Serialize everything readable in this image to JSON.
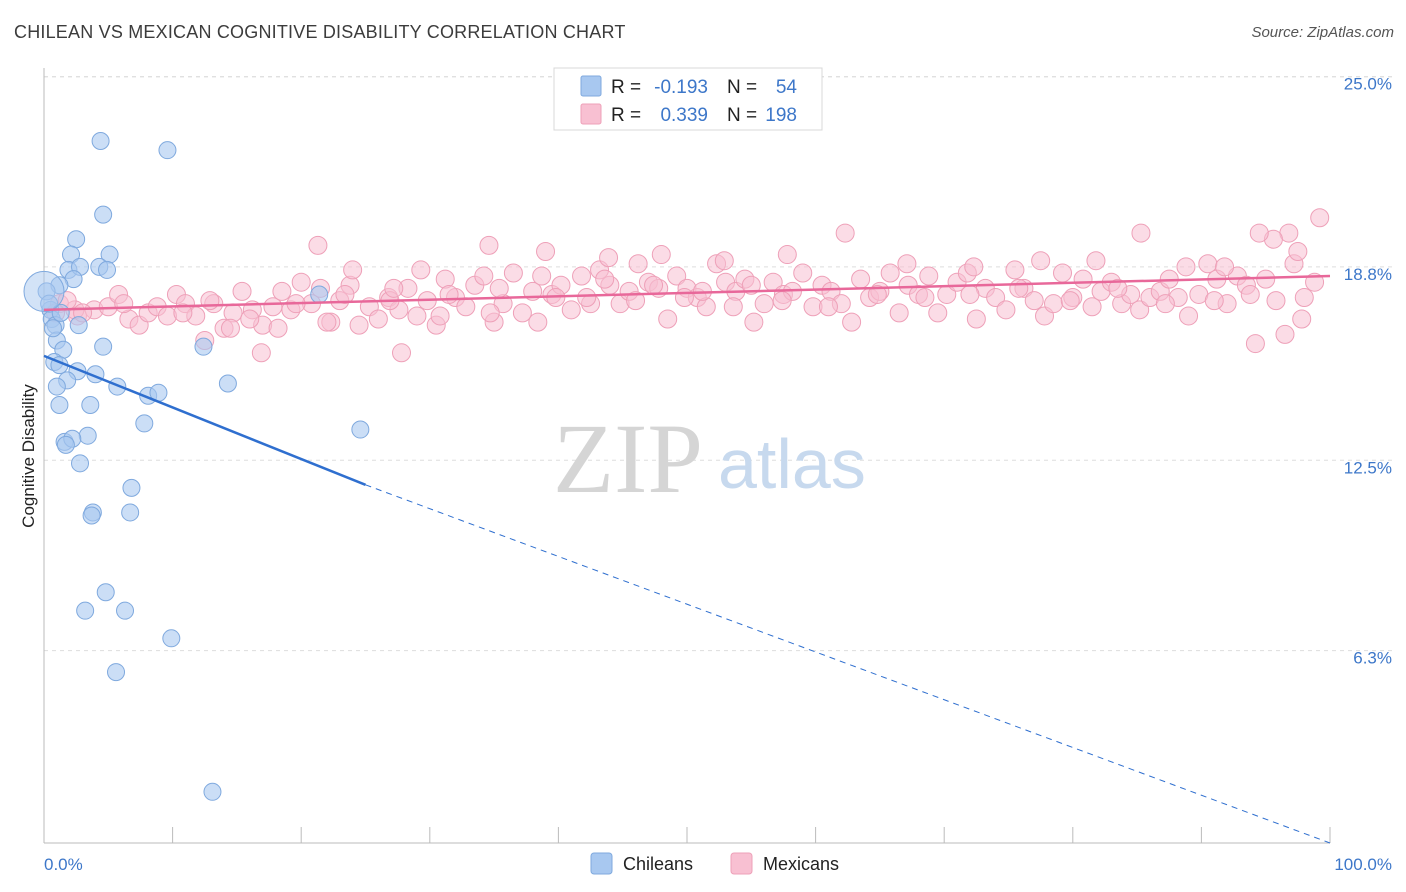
{
  "title": "CHILEAN VS MEXICAN COGNITIVE DISABILITY CORRELATION CHART",
  "source": "Source: ZipAtlas.com",
  "watermark": {
    "zip": "ZIP",
    "atlas": "atlas"
  },
  "legend": {
    "r_label": "R =",
    "n_label": "N =",
    "rows": [
      {
        "r": "-0.193",
        "n": "54",
        "color": "#a8c8f0",
        "stroke": "#7fa9de"
      },
      {
        "r": "0.339",
        "n": "198",
        "color": "#f8c0d2",
        "stroke": "#eea0b8"
      }
    ]
  },
  "chart_data": {
    "type": "scatter",
    "title": "CHILEAN VS MEXICAN COGNITIVE DISABILITY CORRELATION CHART",
    "xlabel": "",
    "ylabel": "Cognitive Disability",
    "xlim": [
      0,
      100
    ],
    "ylim": [
      0,
      25.5
    ],
    "x_tick_labels": [
      "0.0%",
      "100.0%"
    ],
    "y_ticks": [
      {
        "value": 25.0,
        "label": "25.0%"
      },
      {
        "value": 18.8,
        "label": "18.8%"
      },
      {
        "value": 12.5,
        "label": "12.5%"
      },
      {
        "value": 6.3,
        "label": "6.3%"
      }
    ],
    "grid": true,
    "legend_position": "bottom",
    "series": [
      {
        "name": "Chileans",
        "color": "#a8c8f0",
        "stroke": "#7fa9de",
        "line_color": "#2f6fcf",
        "trend": {
          "x0": 0,
          "y0": 15.9,
          "x1": 25,
          "y1": 11.7,
          "dash_to_x": 100,
          "dash_to_y": -0.9
        },
        "points": [
          [
            4.4,
            22.9
          ],
          [
            9.6,
            22.6
          ],
          [
            4.6,
            20.5
          ],
          [
            2.5,
            19.7
          ],
          [
            5.1,
            19.2
          ],
          [
            2.1,
            19.2
          ],
          [
            1.9,
            18.7
          ],
          [
            4.3,
            18.8
          ],
          [
            4.9,
            18.7
          ],
          [
            2.8,
            18.8
          ],
          [
            2.3,
            18.4
          ],
          [
            1.2,
            18.2
          ],
          [
            0.5,
            17.4
          ],
          [
            0.6,
            17.1
          ],
          [
            0.9,
            16.9
          ],
          [
            2.7,
            16.9
          ],
          [
            21.4,
            17.9
          ],
          [
            1.0,
            16.4
          ],
          [
            1.5,
            16.1
          ],
          [
            4.6,
            16.2
          ],
          [
            12.4,
            16.2
          ],
          [
            0.8,
            15.7
          ],
          [
            1.2,
            15.6
          ],
          [
            2.6,
            15.4
          ],
          [
            4.0,
            15.3
          ],
          [
            1.8,
            15.1
          ],
          [
            1.0,
            14.9
          ],
          [
            5.7,
            14.9
          ],
          [
            14.3,
            15.0
          ],
          [
            8.1,
            14.6
          ],
          [
            8.9,
            14.7
          ],
          [
            1.2,
            14.3
          ],
          [
            3.6,
            14.3
          ],
          [
            7.8,
            13.7
          ],
          [
            24.6,
            13.5
          ],
          [
            3.4,
            13.3
          ],
          [
            1.6,
            13.1
          ],
          [
            2.2,
            13.2
          ],
          [
            1.7,
            13.0
          ],
          [
            2.8,
            12.4
          ],
          [
            6.8,
            11.6
          ],
          [
            3.8,
            10.8
          ],
          [
            3.7,
            10.7
          ],
          [
            6.7,
            10.8
          ],
          [
            4.8,
            8.2
          ],
          [
            3.2,
            7.6
          ],
          [
            6.3,
            7.6
          ],
          [
            9.9,
            6.7
          ],
          [
            5.6,
            5.6
          ],
          [
            13.1,
            1.7
          ],
          [
            0.2,
            18.0
          ],
          [
            0.4,
            17.6
          ],
          [
            1.3,
            17.3
          ],
          [
            0.7,
            16.8
          ]
        ]
      },
      {
        "name": "Mexicans",
        "color": "#f8c0d2",
        "stroke": "#eea0b8",
        "line_color": "#e8689a",
        "trend": {
          "x0": 0,
          "y0": 17.4,
          "x1": 100,
          "y1": 18.5
        },
        "points": [
          [
            1.2,
            17.6
          ],
          [
            2.6,
            17.2
          ],
          [
            3.9,
            17.4
          ],
          [
            5.0,
            17.5
          ],
          [
            5.8,
            17.9
          ],
          [
            6.6,
            17.1
          ],
          [
            7.4,
            16.9
          ],
          [
            8.1,
            17.3
          ],
          [
            8.8,
            17.5
          ],
          [
            9.6,
            17.2
          ],
          [
            10.3,
            17.9
          ],
          [
            11.0,
            17.6
          ],
          [
            11.8,
            17.2
          ],
          [
            12.5,
            16.4
          ],
          [
            13.2,
            17.6
          ],
          [
            14.0,
            16.8
          ],
          [
            14.7,
            17.3
          ],
          [
            15.4,
            18.0
          ],
          [
            16.2,
            17.4
          ],
          [
            17.0,
            16.9
          ],
          [
            17.8,
            17.5
          ],
          [
            18.5,
            18.0
          ],
          [
            19.2,
            17.4
          ],
          [
            20.0,
            18.3
          ],
          [
            20.8,
            17.6
          ],
          [
            21.5,
            18.1
          ],
          [
            22.3,
            17.0
          ],
          [
            23.0,
            17.7
          ],
          [
            23.8,
            18.2
          ],
          [
            24.5,
            16.9
          ],
          [
            25.3,
            17.5
          ],
          [
            26.0,
            17.1
          ],
          [
            26.8,
            17.8
          ],
          [
            27.6,
            17.4
          ],
          [
            28.3,
            18.1
          ],
          [
            29.0,
            17.2
          ],
          [
            29.8,
            17.7
          ],
          [
            30.5,
            16.9
          ],
          [
            31.2,
            18.4
          ],
          [
            32.0,
            17.8
          ],
          [
            32.8,
            17.5
          ],
          [
            33.5,
            18.2
          ],
          [
            34.2,
            18.5
          ],
          [
            35.0,
            17.0
          ],
          [
            35.7,
            17.6
          ],
          [
            36.5,
            18.6
          ],
          [
            37.2,
            17.3
          ],
          [
            38.0,
            18.0
          ],
          [
            38.7,
            18.5
          ],
          [
            39.5,
            17.9
          ],
          [
            40.2,
            18.2
          ],
          [
            41.0,
            17.4
          ],
          [
            41.8,
            18.5
          ],
          [
            42.5,
            17.6
          ],
          [
            43.2,
            18.7
          ],
          [
            44.0,
            18.2
          ],
          [
            44.8,
            17.6
          ],
          [
            45.5,
            18.0
          ],
          [
            46.2,
            18.9
          ],
          [
            47.0,
            18.3
          ],
          [
            47.8,
            18.1
          ],
          [
            48.5,
            17.1
          ],
          [
            49.2,
            18.5
          ],
          [
            50.0,
            18.1
          ],
          [
            50.8,
            17.8
          ],
          [
            51.5,
            17.5
          ],
          [
            52.3,
            18.9
          ],
          [
            53.0,
            18.3
          ],
          [
            53.8,
            18.0
          ],
          [
            54.5,
            18.4
          ],
          [
            55.2,
            17.0
          ],
          [
            56.0,
            17.6
          ],
          [
            56.7,
            18.3
          ],
          [
            57.5,
            17.9
          ],
          [
            58.2,
            18.0
          ],
          [
            59.0,
            18.6
          ],
          [
            59.8,
            17.5
          ],
          [
            60.5,
            18.2
          ],
          [
            61.2,
            18.0
          ],
          [
            62.0,
            17.6
          ],
          [
            62.8,
            17.0
          ],
          [
            63.5,
            18.4
          ],
          [
            64.2,
            17.8
          ],
          [
            65.0,
            18.0
          ],
          [
            65.8,
            18.6
          ],
          [
            66.5,
            17.3
          ],
          [
            67.2,
            18.2
          ],
          [
            68.0,
            17.9
          ],
          [
            68.8,
            18.5
          ],
          [
            69.5,
            17.3
          ],
          [
            70.2,
            17.9
          ],
          [
            71.0,
            18.3
          ],
          [
            71.8,
            18.6
          ],
          [
            72.5,
            17.1
          ],
          [
            73.2,
            18.1
          ],
          [
            74.0,
            17.8
          ],
          [
            74.8,
            17.4
          ],
          [
            75.5,
            18.7
          ],
          [
            76.2,
            18.1
          ],
          [
            77.0,
            17.7
          ],
          [
            77.8,
            17.2
          ],
          [
            78.5,
            17.6
          ],
          [
            79.2,
            18.6
          ],
          [
            80.0,
            17.8
          ],
          [
            80.8,
            18.4
          ],
          [
            81.5,
            17.5
          ],
          [
            82.2,
            18.0
          ],
          [
            83.0,
            18.3
          ],
          [
            83.8,
            17.6
          ],
          [
            84.5,
            17.9
          ],
          [
            85.2,
            17.4
          ],
          [
            86.0,
            17.8
          ],
          [
            86.8,
            18.0
          ],
          [
            87.5,
            18.4
          ],
          [
            88.2,
            17.8
          ],
          [
            89.0,
            17.2
          ],
          [
            89.8,
            17.9
          ],
          [
            90.5,
            18.9
          ],
          [
            91.2,
            18.4
          ],
          [
            92.0,
            17.6
          ],
          [
            92.8,
            18.5
          ],
          [
            93.5,
            18.2
          ],
          [
            94.2,
            16.3
          ],
          [
            95.0,
            18.4
          ],
          [
            95.8,
            17.7
          ],
          [
            96.5,
            16.6
          ],
          [
            97.2,
            18.9
          ],
          [
            98.0,
            17.8
          ],
          [
            98.8,
            18.3
          ],
          [
            99.2,
            20.4
          ],
          [
            97.5,
            19.3
          ],
          [
            96.8,
            19.9
          ],
          [
            95.6,
            19.7
          ],
          [
            94.5,
            19.9
          ],
          [
            91.8,
            18.8
          ],
          [
            88.8,
            18.8
          ],
          [
            85.3,
            19.9
          ],
          [
            81.8,
            19.0
          ],
          [
            77.5,
            19.0
          ],
          [
            72.3,
            18.8
          ],
          [
            67.1,
            18.9
          ],
          [
            62.3,
            19.9
          ],
          [
            57.8,
            19.2
          ],
          [
            52.9,
            19.0
          ],
          [
            48.0,
            19.2
          ],
          [
            43.9,
            19.1
          ],
          [
            39.0,
            19.3
          ],
          [
            34.6,
            19.5
          ],
          [
            29.3,
            18.7
          ],
          [
            24.0,
            18.7
          ],
          [
            21.3,
            19.5
          ],
          [
            16.9,
            16.0
          ],
          [
            27.8,
            16.0
          ],
          [
            16.0,
            17.1
          ],
          [
            6.2,
            17.6
          ],
          [
            2.4,
            17.4
          ],
          [
            3.0,
            17.3
          ],
          [
            1.8,
            17.7
          ],
          [
            0.9,
            17.3
          ],
          [
            12.9,
            17.7
          ],
          [
            18.2,
            16.8
          ],
          [
            22.0,
            17.0
          ],
          [
            26.9,
            17.7
          ],
          [
            30.8,
            17.2
          ],
          [
            34.7,
            17.3
          ],
          [
            38.4,
            17.0
          ],
          [
            42.2,
            17.8
          ],
          [
            46.0,
            17.7
          ],
          [
            49.8,
            17.8
          ],
          [
            53.6,
            17.5
          ],
          [
            57.4,
            17.7
          ],
          [
            61.0,
            17.5
          ],
          [
            64.8,
            17.9
          ],
          [
            68.5,
            17.8
          ],
          [
            72.0,
            17.9
          ],
          [
            75.8,
            18.1
          ],
          [
            79.8,
            17.7
          ],
          [
            83.5,
            18.1
          ],
          [
            87.2,
            17.6
          ],
          [
            91.0,
            17.7
          ],
          [
            93.8,
            17.9
          ],
          [
            97.8,
            17.1
          ],
          [
            10.8,
            17.3
          ],
          [
            14.5,
            16.8
          ],
          [
            19.6,
            17.6
          ],
          [
            23.4,
            17.9
          ],
          [
            27.2,
            18.1
          ],
          [
            31.5,
            17.9
          ],
          [
            35.4,
            18.1
          ],
          [
            39.8,
            17.8
          ],
          [
            43.6,
            18.4
          ],
          [
            47.4,
            18.2
          ],
          [
            51.2,
            18.0
          ],
          [
            55.0,
            18.2
          ]
        ]
      }
    ]
  },
  "bottom_legend": [
    {
      "label": "Chileans",
      "color": "#a8c8f0",
      "stroke": "#7fa9de"
    },
    {
      "label": "Mexicans",
      "color": "#f8c0d2",
      "stroke": "#eea0b8"
    }
  ]
}
